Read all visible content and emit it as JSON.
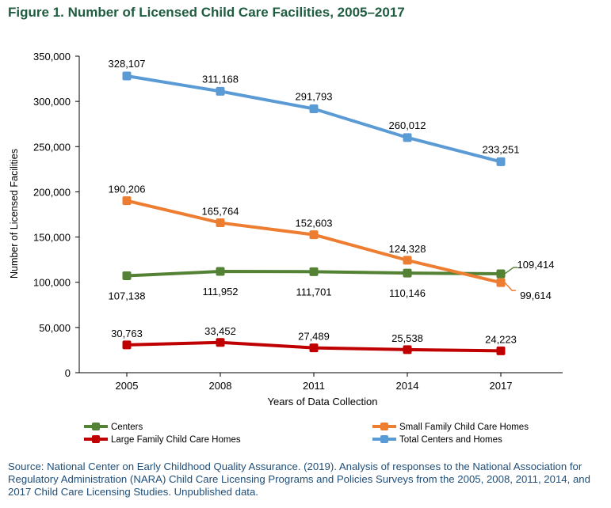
{
  "figure_title": "Figure 1. Number of Licensed Child Care Facilities, 2005–2017",
  "source_note": "Source: National Center on Early Childhood Quality Assurance. (2019). Analysis of responses to the National Association for Regulatory Administration (NARA) Child Care Licensing Programs and Policies Surveys from the 2005, 2008, 2011, 2014, and 2017 Child Care Licensing Studies. Unpublished data.",
  "chart_data": {
    "type": "line",
    "title": "",
    "xlabel": "Years of Data Collection",
    "ylabel": "Number of Licensed Facilities",
    "categories": [
      "2005",
      "2008",
      "2011",
      "2014",
      "2017"
    ],
    "ylim": [
      0,
      350000
    ],
    "yticks": [
      0,
      50000,
      100000,
      150000,
      200000,
      250000,
      300000,
      350000
    ],
    "ytick_labels": [
      "0",
      "50,000",
      "100,000",
      "150,000",
      "200,000",
      "250,000",
      "300,000",
      "350,000"
    ],
    "grid": false,
    "legend_position": "bottom",
    "series": [
      {
        "key": "centers",
        "name": "Centers",
        "color": "#548235",
        "values": [
          107138,
          111952,
          111701,
          110146,
          109414
        ],
        "labels": [
          "107,138",
          "111,952",
          "111,701",
          "110,146",
          "109,414"
        ]
      },
      {
        "key": "small",
        "name": "Small Family Child Care Homes",
        "color": "#ed7d31",
        "values": [
          190206,
          165764,
          152603,
          124328,
          99614
        ],
        "labels": [
          "190,206",
          "165,764",
          "152,603",
          "124,328",
          "99,614"
        ]
      },
      {
        "key": "large",
        "name": "Large Family Child Care Homes",
        "color": "#c00000",
        "values": [
          30763,
          33452,
          27489,
          25538,
          24223
        ],
        "labels": [
          "30,763",
          "33,452",
          "27,489",
          "25,538",
          "24,223"
        ]
      },
      {
        "key": "total",
        "name": "Total Centers and Homes",
        "color": "#5b9bd5",
        "values": [
          328107,
          311168,
          291793,
          260012,
          233251
        ],
        "labels": [
          "328,107",
          "311,168",
          "291,793",
          "260,012",
          "233,251"
        ]
      }
    ]
  }
}
